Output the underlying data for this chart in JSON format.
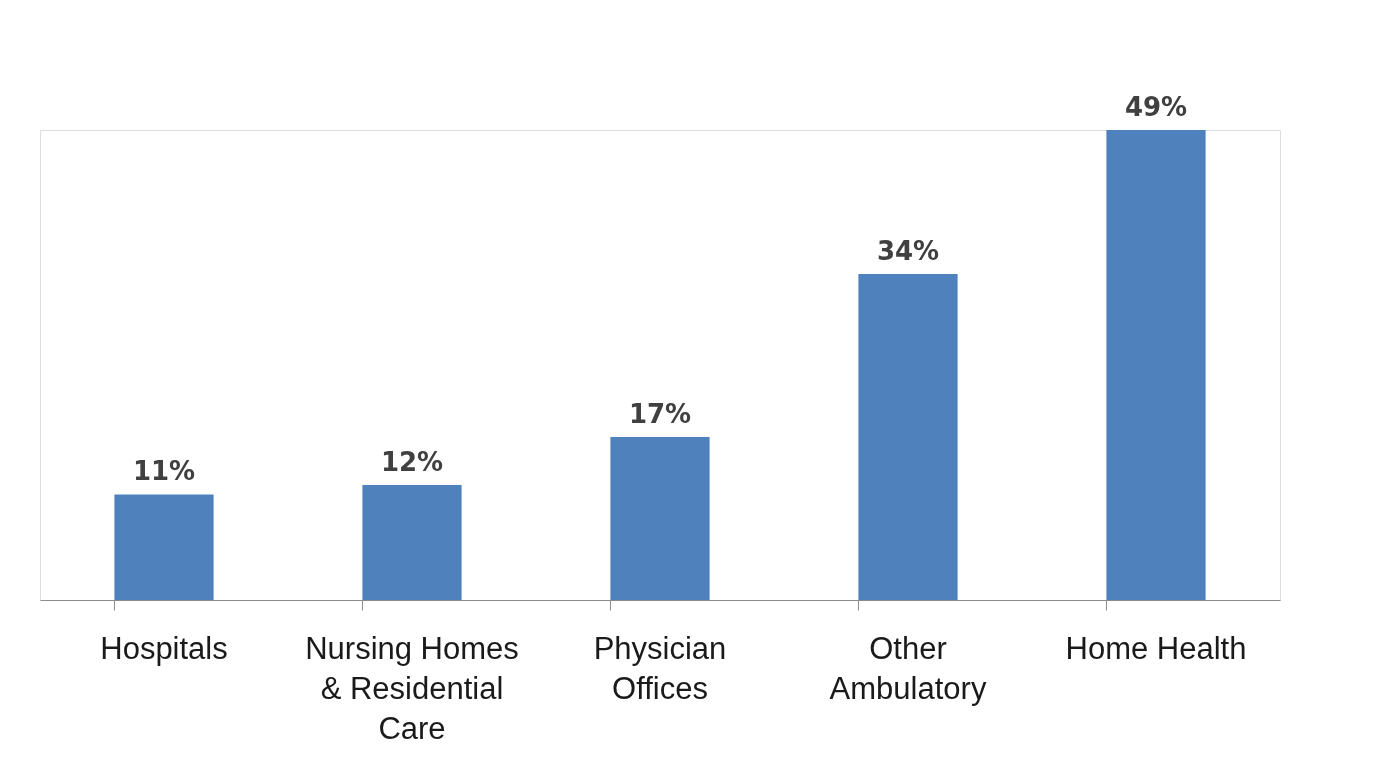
{
  "chart_data": {
    "type": "bar",
    "categories": [
      "Hospitals",
      "Nursing Homes & Residential Care",
      "Physician Offices",
      "Other Ambulatory",
      "Home Health"
    ],
    "values": [
      11,
      12,
      17,
      34,
      49
    ],
    "value_labels": [
      "11%",
      "12%",
      "17%",
      "34%",
      "49%"
    ],
    "color": "#4f81bd"
  }
}
